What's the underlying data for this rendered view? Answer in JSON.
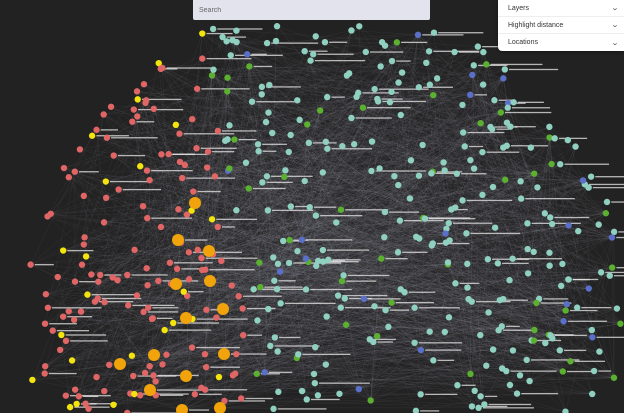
{
  "search": {
    "placeholder": "Search"
  },
  "panel": {
    "items": [
      {
        "label": "Layers",
        "icon": "chevron-down"
      },
      {
        "label": "Highlight distance",
        "icon": "chevron-down"
      },
      {
        "label": "Locations",
        "icon": "chevron-down"
      }
    ]
  },
  "graph": {
    "background": "#222222",
    "edge_color": "#9a9aa8",
    "label_color": "#e8e8e8",
    "node_colors": {
      "red": "#e06666",
      "teal": "#8fd0c0",
      "yellow": "#f2e40c",
      "orange": "#f0a30a",
      "green": "#5bb030",
      "blue": "#5a6fc8"
    }
  }
}
